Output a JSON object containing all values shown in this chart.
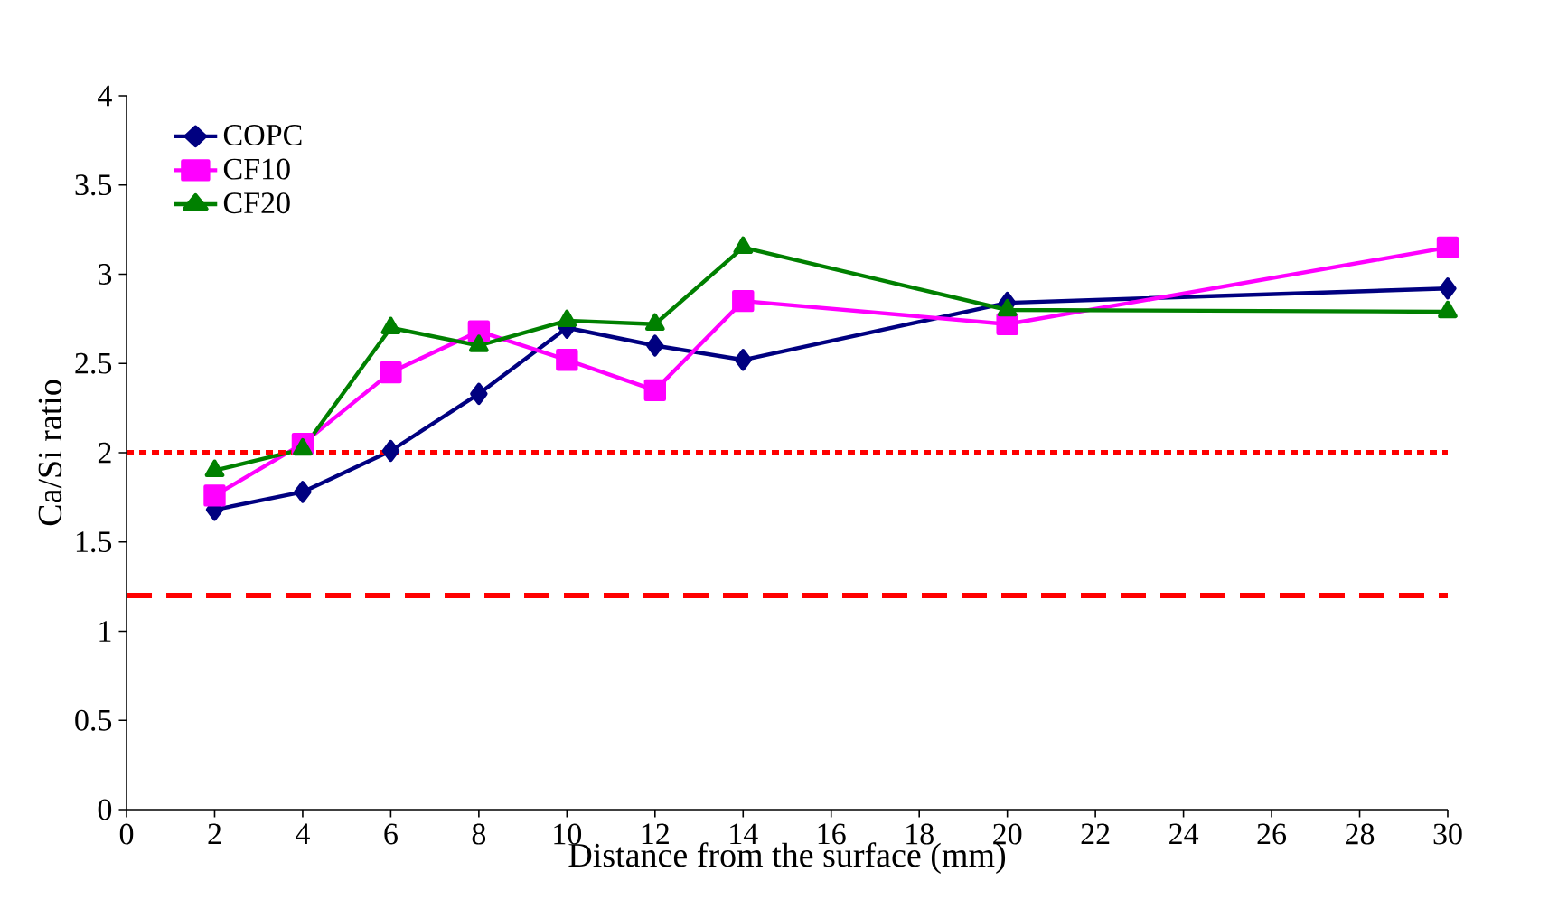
{
  "chart_data": {
    "type": "line",
    "xlabel": "Distance from the surface (mm)",
    "ylabel": "Ca/Si ratio",
    "x": [
      2,
      4,
      6,
      8,
      10,
      12,
      14,
      20,
      30
    ],
    "series": [
      {
        "name": "COPC",
        "color": "#000080",
        "marker": "diamond",
        "values": [
          1.68,
          1.78,
          2.01,
          2.33,
          2.7,
          2.6,
          2.52,
          2.84,
          2.92
        ]
      },
      {
        "name": "CF10",
        "color": "#ff00ff",
        "marker": "square",
        "values": [
          1.76,
          2.05,
          2.45,
          2.68,
          2.52,
          2.35,
          2.85,
          2.72,
          3.15
        ]
      },
      {
        "name": "CF20",
        "color": "#008000",
        "marker": "triangle",
        "values": [
          1.9,
          2.02,
          2.7,
          2.6,
          2.74,
          2.72,
          3.15,
          2.8,
          2.79
        ]
      }
    ],
    "xlim": [
      0,
      30
    ],
    "xticks": [
      0,
      2,
      4,
      6,
      8,
      10,
      12,
      14,
      16,
      18,
      20,
      22,
      24,
      26,
      28,
      30
    ],
    "ylim": [
      0,
      4
    ],
    "yticks": [
      0,
      {
        "value": 0.5,
        "label": "0.5"
      },
      1,
      {
        "value": 1.5,
        "label": "1.5"
      },
      2,
      {
        "value": 2.5,
        "label": "2.5"
      },
      3,
      {
        "value": 3.5,
        "label": "3.5"
      },
      4
    ],
    "ref_lines": [
      {
        "axis": "y",
        "value": 2,
        "color": "#ff0000",
        "line_style": "dotted"
      },
      {
        "axis": "y",
        "value": 1.2,
        "color": "#ff0000",
        "line_style": "dashed"
      }
    ],
    "legend": "top left",
    "grid": false
  }
}
